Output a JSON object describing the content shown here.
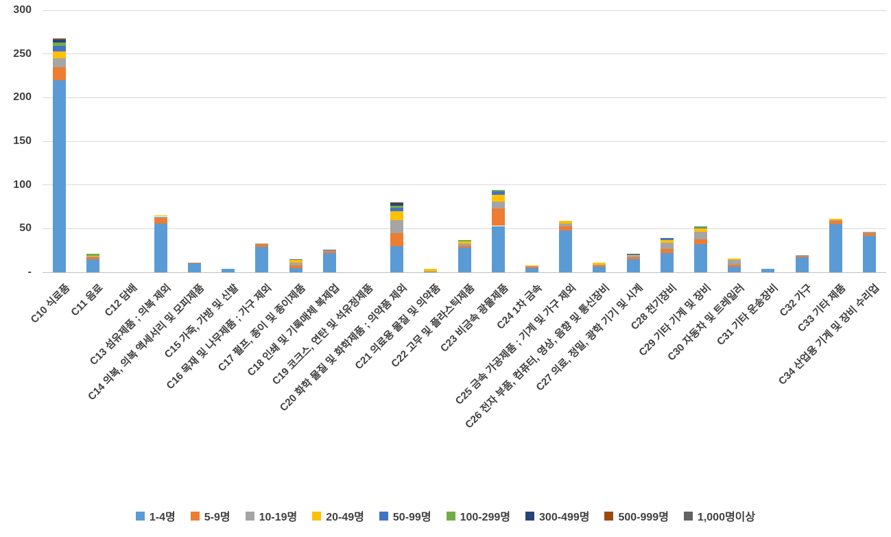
{
  "chart_data": {
    "type": "bar",
    "stacked": true,
    "title": "",
    "xlabel": "",
    "ylabel": "",
    "ylim": [
      0,
      300
    ],
    "grid": true,
    "legend_position": "bottom",
    "yticks": [
      {
        "value": 0,
        "label": "-"
      },
      {
        "value": 50,
        "label": "50"
      },
      {
        "value": 100,
        "label": "100"
      },
      {
        "value": 150,
        "label": "150"
      },
      {
        "value": 200,
        "label": "200"
      },
      {
        "value": 250,
        "label": "250"
      },
      {
        "value": 300,
        "label": "300"
      }
    ],
    "categories": [
      "C10 식료품",
      "C11 음료",
      "C12 담배",
      "C13 섬유제품 ; 의복 제외",
      "C14 의복, 의복 액세서리 및 모피제품",
      "C15 가죽, 가방 및 신발",
      "C16 목재 및 나무제품 ; 가구 제외",
      "C17 펄프, 종이 및 종이제품",
      "C18 인쇄 및 기록매체 복제업",
      "C19 코크스, 연탄 및 석유정제품",
      "C20 화학 물질 및 화학제품 ; 의약품 제외",
      "C21 의료용 물질 및 의약품",
      "C22 고무 및 플라스틱제품",
      "C23 비금속 광물제품",
      "C24 1차 금속",
      "C25 금속 가공제품 ; 기계 및 가구 제외",
      "C26 전자 부품, 컴퓨터, 영상, 음향 및 통신장비",
      "C27 의료, 정밀, 광학 기기 및 시계",
      "C28 전기장비",
      "C29 기타 기계 및 장비",
      "C30 자동차 및 트레일러",
      "C31 기타 운송장비",
      "C32 가구",
      "C33 기타 제품",
      "C34 산업용 기계 및 장비 수리업"
    ],
    "series": [
      {
        "name": "1-4명",
        "color": "#5B9BD5",
        "values": [
          220,
          15,
          0,
          56,
          10,
          4,
          29,
          5,
          22,
          0,
          30,
          1,
          28,
          53,
          5,
          48,
          6,
          15,
          22,
          32,
          6,
          4,
          17,
          55,
          42
        ]
      },
      {
        "name": "5-9명",
        "color": "#ED7D31",
        "values": [
          15,
          2,
          0,
          6,
          1,
          0,
          3,
          3,
          2,
          0,
          15,
          0,
          3,
          20,
          1,
          5,
          2,
          2,
          5,
          6,
          3,
          0,
          2,
          4,
          3
        ]
      },
      {
        "name": "10-19명",
        "color": "#A5A5A5",
        "values": [
          10,
          1,
          0,
          2,
          0,
          0,
          1,
          3,
          1,
          0,
          15,
          0,
          2,
          8,
          1,
          3,
          1,
          2,
          7,
          8,
          5,
          0,
          1,
          1,
          1
        ]
      },
      {
        "name": "20-49명",
        "color": "#FFC000",
        "values": [
          8,
          1,
          0,
          1,
          0,
          0,
          0,
          3,
          0,
          0,
          10,
          3,
          2,
          8,
          1,
          3,
          2,
          1,
          3,
          4,
          2,
          0,
          0,
          1,
          0
        ]
      },
      {
        "name": "50-99명",
        "color": "#4472C4",
        "values": [
          6,
          0,
          0,
          0,
          0,
          0,
          0,
          1,
          1,
          0,
          4,
          0,
          0,
          4,
          0,
          0,
          0,
          1,
          2,
          1,
          0,
          0,
          0,
          0,
          0
        ]
      },
      {
        "name": "100-299명",
        "color": "#70AD47",
        "values": [
          4,
          2,
          0,
          0,
          0,
          0,
          0,
          0,
          0,
          0,
          2,
          0,
          2,
          1,
          0,
          0,
          0,
          0,
          0,
          2,
          0,
          0,
          0,
          0,
          0
        ]
      },
      {
        "name": "300-499명",
        "color": "#264478",
        "values": [
          3,
          0,
          0,
          0,
          0,
          0,
          0,
          0,
          0,
          0,
          3,
          0,
          0,
          0,
          0,
          0,
          0,
          0,
          0,
          0,
          0,
          0,
          0,
          0,
          0
        ]
      },
      {
        "name": "500-999명",
        "color": "#9E480E",
        "values": [
          1,
          0,
          0,
          0,
          0,
          0,
          0,
          0,
          0,
          0,
          1,
          0,
          0,
          0,
          0,
          0,
          0,
          0,
          0,
          0,
          0,
          0,
          0,
          0,
          0
        ]
      },
      {
        "name": "1,000명이상",
        "color": "#636363",
        "values": [
          1,
          0,
          0,
          0,
          0,
          0,
          0,
          0,
          0,
          0,
          0,
          0,
          0,
          0,
          0,
          0,
          0,
          0,
          0,
          0,
          0,
          0,
          0,
          0,
          0
        ]
      }
    ]
  },
  "layout_hints": {
    "note": "stacked column chart, horizontal gridlines, legend bottom centered, x labels rotated 45 degrees"
  }
}
